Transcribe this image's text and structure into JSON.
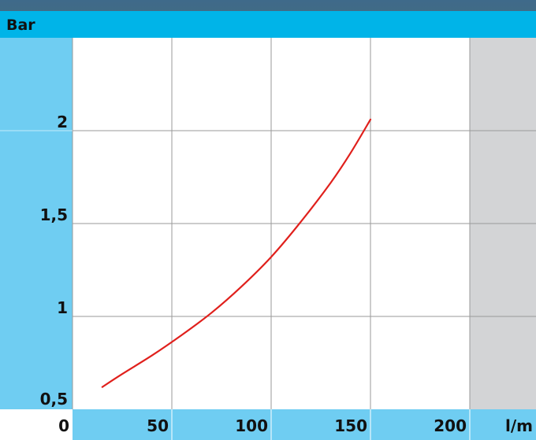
{
  "chart_data": {
    "type": "line",
    "title": "",
    "ylabel": "Bar",
    "xlabel": "l/m",
    "origin_label": "0",
    "xlim": [
      0,
      250
    ],
    "ylim": [
      0.5,
      2.5
    ],
    "x_ticks": [
      {
        "value": 50,
        "label": "50"
      },
      {
        "value": 100,
        "label": "100"
      },
      {
        "value": 150,
        "label": "150"
      },
      {
        "value": 200,
        "label": "200"
      }
    ],
    "y_ticks": [
      {
        "value": 0.5,
        "label": "0,5"
      },
      {
        "value": 1,
        "label": "1"
      },
      {
        "value": 1.5,
        "label": "1,5"
      },
      {
        "value": 2,
        "label": "2"
      }
    ],
    "grid": true,
    "series": [
      {
        "color": "#e0201c",
        "x": [
          15,
          25,
          40,
          55,
          70,
          85,
          100,
          115,
          130,
          140,
          150
        ],
        "y": [
          0.62,
          0.69,
          0.79,
          0.9,
          1.02,
          1.16,
          1.32,
          1.51,
          1.72,
          1.88,
          2.06
        ]
      }
    ],
    "colors": {
      "header": "#00b4e8",
      "axis_band": "#6fcdf2",
      "plot_bg": "#ffffff",
      "shaded_region": "#d3d4d6",
      "grid": "#9a9a9a"
    },
    "shaded_region_x": [
      200,
      250
    ]
  }
}
